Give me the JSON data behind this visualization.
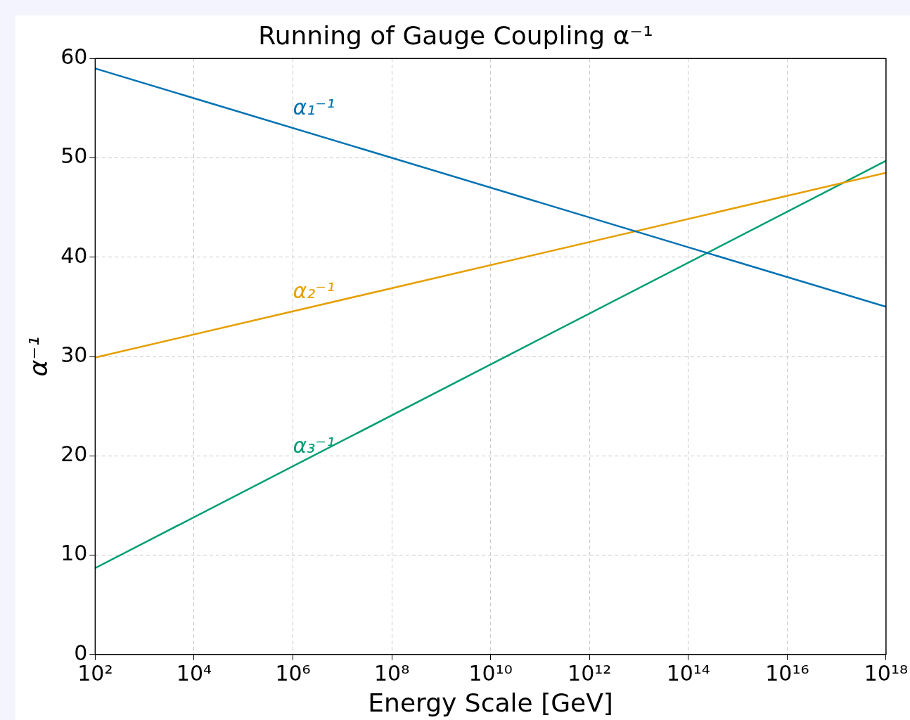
{
  "chart_data": {
    "type": "line",
    "title": "Running of Gauge Coupling α⁻¹",
    "xlabel": "Energy Scale [GeV]",
    "ylabel": "α⁻¹",
    "log": "x",
    "grid": true,
    "legend": false,
    "marker": "none",
    "line_style": "solid",
    "xlim": [
      100.0,
      1e+18
    ],
    "ylim": [
      0,
      60
    ],
    "xticks": [
      {
        "value": 100.0,
        "label": "10²"
      },
      {
        "value": 10000.0,
        "label": "10⁴"
      },
      {
        "value": 1000000.0,
        "label": "10⁶"
      },
      {
        "value": 100000000.0,
        "label": "10⁸"
      },
      {
        "value": 10000000000.0,
        "label": "10¹⁰"
      },
      {
        "value": 1000000000000.0,
        "label": "10¹²"
      },
      {
        "value": 100000000000000.0,
        "label": "10¹⁴"
      },
      {
        "value": 1e+16,
        "label": "10¹⁶"
      },
      {
        "value": 1e+18,
        "label": "10¹⁸"
      }
    ],
    "yticks": [
      0,
      10,
      20,
      30,
      40,
      50,
      60
    ],
    "x": [
      100.0,
      1e+18
    ],
    "series": [
      {
        "name": "α₁⁻¹",
        "color": "#0072b2",
        "values": [
          59,
          35
        ]
      },
      {
        "name": "α₂⁻¹",
        "color": "#e69f00",
        "values": [
          29.9,
          48.5
        ]
      },
      {
        "name": "α₃⁻¹",
        "color": "#009e73",
        "values": [
          8.7,
          49.7
        ]
      }
    ]
  }
}
